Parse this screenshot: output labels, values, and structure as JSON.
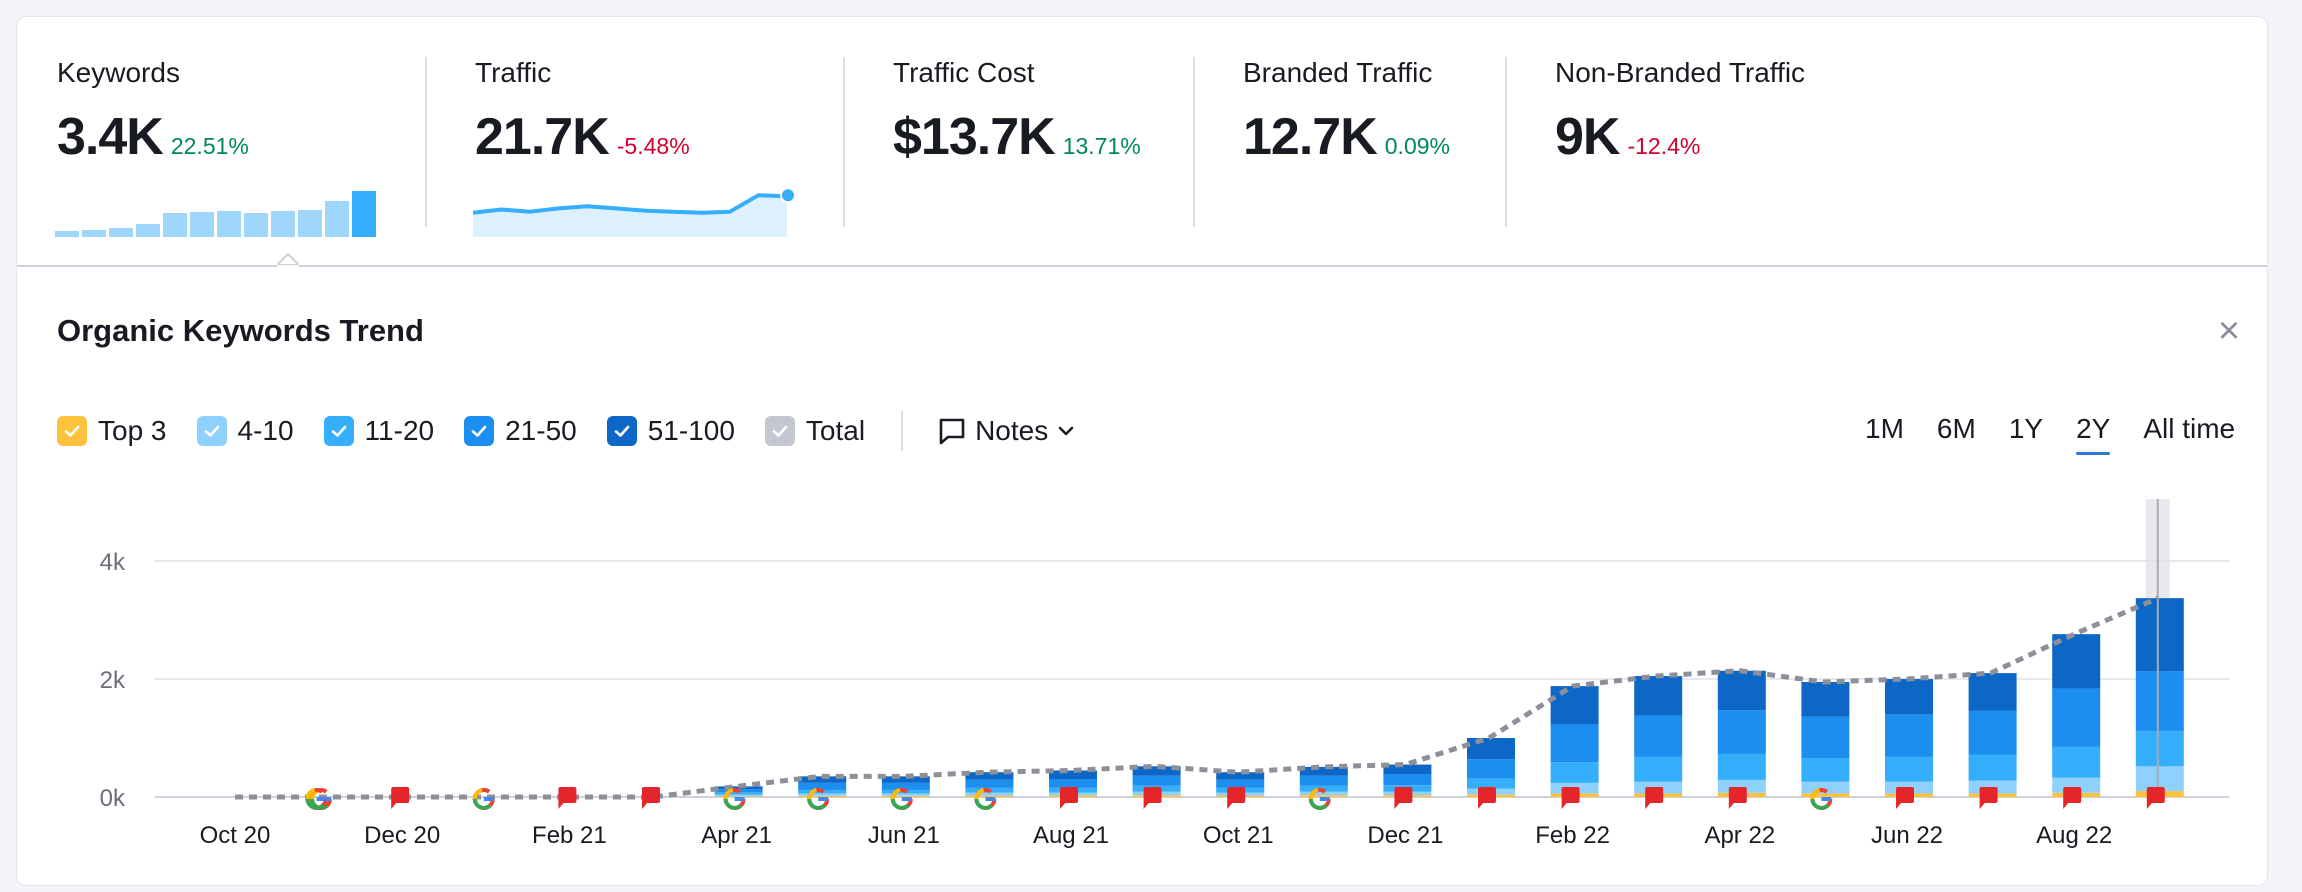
{
  "metrics": [
    {
      "label": "Keywords",
      "value": "3.4K",
      "delta": "22.51%",
      "trend": "up"
    },
    {
      "label": "Traffic",
      "value": "21.7K",
      "delta": "-5.48%",
      "trend": "down"
    },
    {
      "label": "Traffic Cost",
      "value": "$13.7K",
      "delta": "13.71%",
      "trend": "up"
    },
    {
      "label": "Branded Traffic",
      "value": "12.7K",
      "delta": "0.09%",
      "trend": "up"
    },
    {
      "label": "Non-Branded Traffic",
      "value": "9K",
      "delta": "-12.4%",
      "trend": "down"
    }
  ],
  "sparklines": {
    "keywords": [
      0.06,
      0.07,
      0.09,
      0.13,
      0.24,
      0.25,
      0.26,
      0.24,
      0.26,
      0.27,
      0.36,
      0.46
    ],
    "traffic": [
      11,
      12.5,
      11.5,
      13,
      14,
      13,
      12,
      11.5,
      11,
      11.5,
      19,
      18.5
    ]
  },
  "trend": {
    "title": "Organic Keywords Trend",
    "close_label": "×"
  },
  "legend": [
    {
      "label": "Top 3",
      "color": "#fdc23c",
      "checked": true
    },
    {
      "label": "4-10",
      "color": "#8fd1fe",
      "checked": true
    },
    {
      "label": "11-20",
      "color": "#35aefb",
      "checked": true
    },
    {
      "label": "21-50",
      "color": "#1b8ef0",
      "checked": true
    },
    {
      "label": "51-100",
      "color": "#0d67c7",
      "checked": true
    },
    {
      "label": "Total",
      "color": "#c5c7d0",
      "checked": true
    }
  ],
  "notes_label": "Notes",
  "periods": [
    {
      "label": "1M",
      "active": false
    },
    {
      "label": "6M",
      "active": false
    },
    {
      "label": "1Y",
      "active": false
    },
    {
      "label": "2Y",
      "active": true
    },
    {
      "label": "All time",
      "active": false
    }
  ],
  "chart_data": {
    "type": "bar",
    "title": "Organic Keywords Trend",
    "stacked": true,
    "ylim": [
      0,
      4000
    ],
    "yticks": [
      "0k",
      "2k",
      "4k"
    ],
    "xlabel": "",
    "ylabel": "",
    "x_tick_labels": [
      "Oct 20",
      "Dec 20",
      "Feb 21",
      "Apr 21",
      "Jun 21",
      "Aug 21",
      "Oct 21",
      "Dec 21",
      "Feb 22",
      "Apr 22",
      "Jun 22",
      "Aug 22"
    ],
    "categories": [
      "Oct 20",
      "Nov 20",
      "Dec 20",
      "Jan 21",
      "Feb 21",
      "Mar 21",
      "Apr 21",
      "May 21",
      "Jun 21",
      "Jul 21",
      "Aug 21",
      "Sep 21",
      "Oct 21",
      "Nov 21",
      "Dec 21",
      "Jan 22",
      "Feb 22",
      "Mar 22",
      "Apr 22",
      "May 22",
      "Jun 22",
      "Jul 22",
      "Aug 22",
      "Sep 22"
    ],
    "series": [
      {
        "name": "Top 3",
        "color": "#fdc23c",
        "values": [
          0,
          0,
          0,
          0,
          0,
          0,
          10,
          20,
          20,
          25,
          25,
          30,
          25,
          30,
          30,
          40,
          60,
          60,
          70,
          60,
          60,
          60,
          70,
          100
        ]
      },
      {
        "name": "4-10",
        "color": "#8fd1fe",
        "values": [
          0,
          0,
          0,
          0,
          0,
          0,
          30,
          40,
          40,
          50,
          50,
          60,
          50,
          60,
          60,
          100,
          180,
          200,
          220,
          200,
          200,
          220,
          260,
          420
        ]
      },
      {
        "name": "11-20",
        "color": "#35aefb",
        "values": [
          0,
          0,
          0,
          0,
          0,
          0,
          40,
          60,
          60,
          80,
          80,
          100,
          80,
          100,
          110,
          170,
          350,
          420,
          440,
          400,
          420,
          440,
          520,
          600
        ]
      },
      {
        "name": "21-50",
        "color": "#1b8ef0",
        "values": [
          0,
          0,
          0,
          0,
          0,
          0,
          50,
          120,
          120,
          140,
          150,
          170,
          140,
          170,
          190,
          330,
          640,
          700,
          740,
          700,
          720,
          740,
          990,
          1010
        ]
      },
      {
        "name": "51-100",
        "color": "#0d67c7",
        "values": [
          0,
          0,
          0,
          0,
          0,
          0,
          50,
          110,
          110,
          125,
          145,
          160,
          125,
          150,
          160,
          360,
          650,
          670,
          670,
          590,
          600,
          640,
          920,
          1240
        ]
      }
    ],
    "total": [
      0,
      0,
      0,
      0,
      0,
      0,
      180,
      350,
      350,
      420,
      450,
      520,
      420,
      510,
      550,
      1000,
      1880,
      2050,
      2140,
      1950,
      2000,
      2100,
      2760,
      3370
    ],
    "events": [
      "google",
      "google",
      "note",
      "google",
      "note",
      "note",
      "google",
      "google",
      "google",
      "google",
      "note",
      "note",
      "note",
      "google",
      "note",
      "note",
      "note",
      "note",
      "note",
      "google",
      "note",
      "note",
      "note",
      "note"
    ],
    "highlighted_category": "Sep 22"
  }
}
